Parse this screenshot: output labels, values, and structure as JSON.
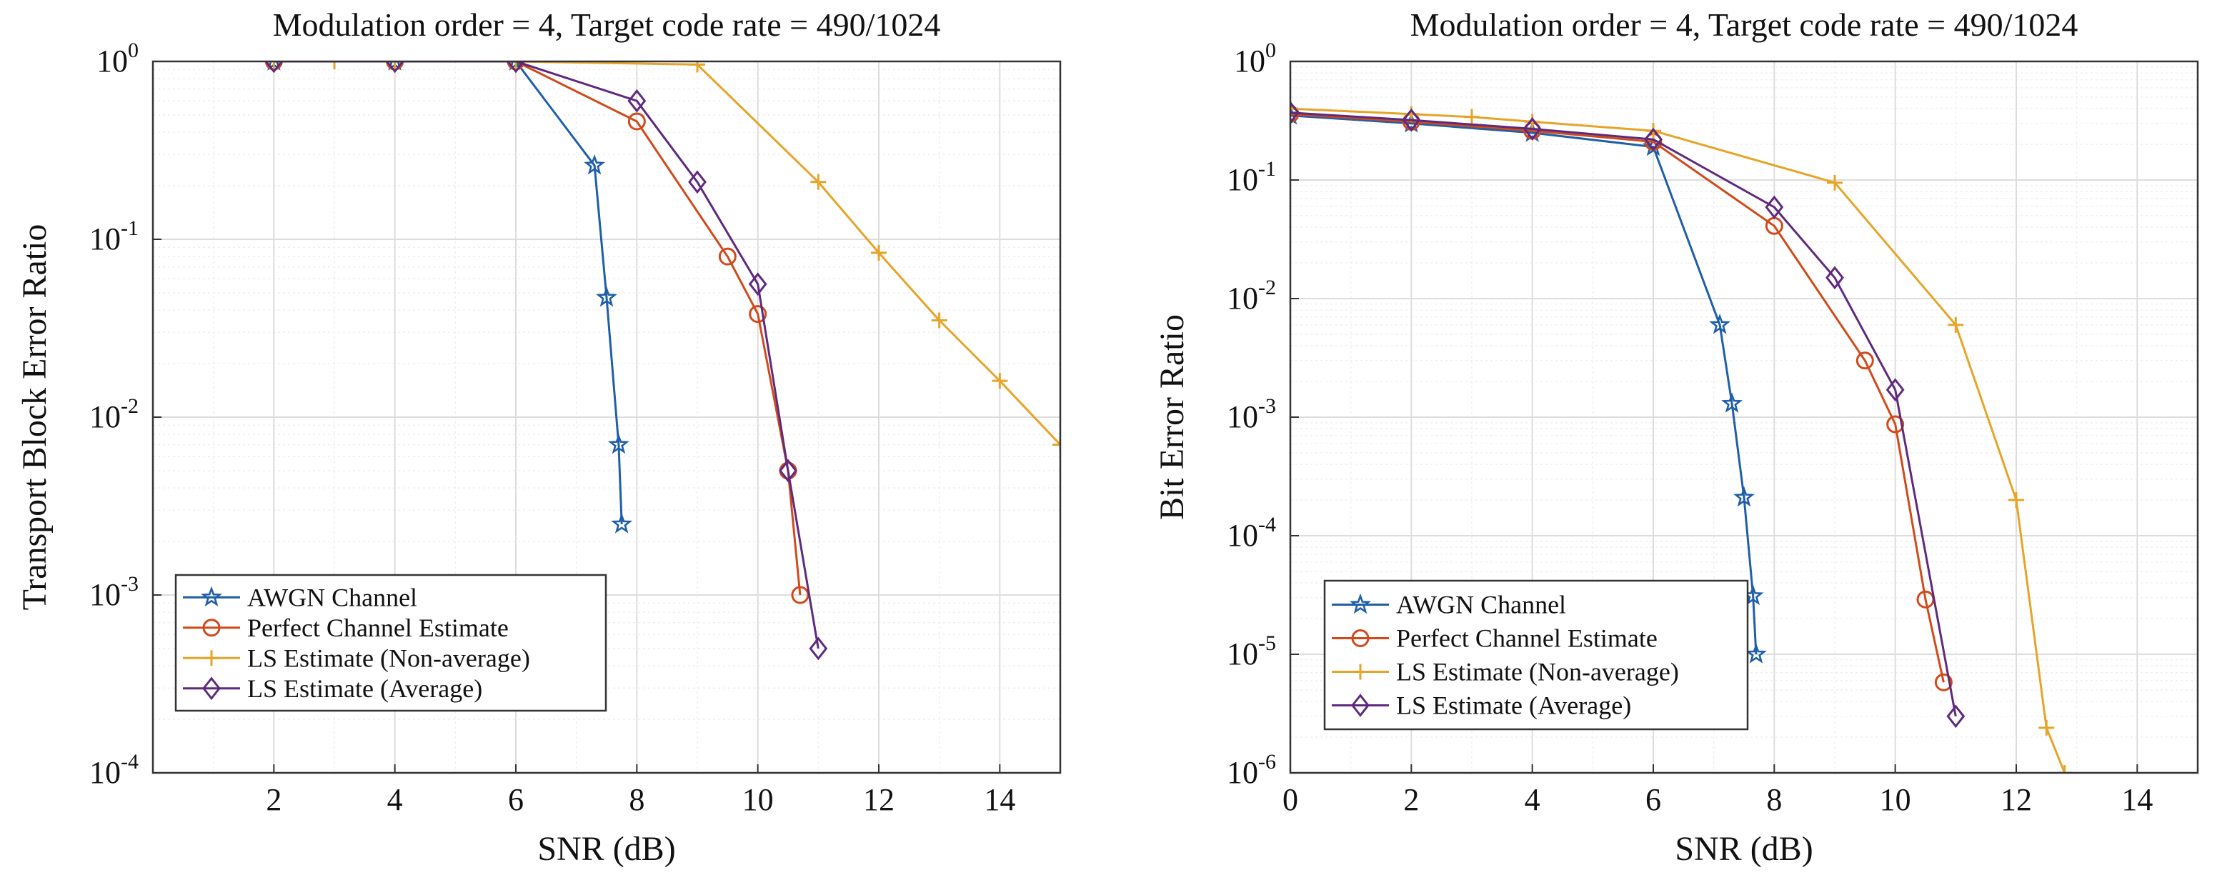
{
  "colors": {
    "awgn": "#1F5FA8",
    "perfect": "#D14A1B",
    "ls_nonavg": "#E6A428",
    "ls_avg": "#5E2A7E",
    "grid_major": "#DDDDDD",
    "grid_minor": "#EFEFEF",
    "axes": "#333333"
  },
  "chart_data": [
    {
      "type": "line",
      "title": "Modulation order = 4, Target code rate = 490/1024",
      "xlabel": "SNR (dB)",
      "ylabel": "Transport Block Error Ratio",
      "yscale": "log",
      "xlim": [
        0,
        15
      ],
      "ylim_exp": [
        -4,
        0
      ],
      "xticks": [
        2,
        4,
        6,
        8,
        10,
        12,
        14
      ],
      "yticks": [
        {
          "mant": "10",
          "exp": "0"
        },
        {
          "mant": "10",
          "exp": "-1"
        },
        {
          "mant": "10",
          "exp": "-2"
        },
        {
          "mant": "10",
          "exp": "-3"
        },
        {
          "mant": "10",
          "exp": "-4"
        }
      ],
      "legend_location": "lower-left",
      "series": [
        {
          "name": "AWGN Channel",
          "color_key": "awgn",
          "marker": "star",
          "x": [
            2,
            4,
            6,
            7.3,
            7.5,
            7.7,
            7.75
          ],
          "y": [
            1,
            1,
            1,
            0.26,
            0.047,
            0.007,
            0.0025
          ]
        },
        {
          "name": "Perfect Channel Estimate",
          "color_key": "perfect",
          "marker": "circle",
          "x": [
            2,
            4,
            6,
            8,
            9.5,
            10,
            10.5,
            10.7
          ],
          "y": [
            1,
            1,
            1,
            0.46,
            0.08,
            0.038,
            0.005,
            0.001
          ]
        },
        {
          "name": "LS Estimate (Non-average)",
          "color_key": "ls_nonavg",
          "marker": "plus",
          "x": [
            2,
            3,
            4,
            6,
            9,
            11,
            12,
            13,
            14,
            15
          ],
          "y": [
            1,
            1,
            1,
            1,
            0.96,
            0.21,
            0.084,
            0.035,
            0.016,
            0.007
          ]
        },
        {
          "name": "LS Estimate (Average)",
          "color_key": "ls_avg",
          "marker": "diamond",
          "x": [
            2,
            4,
            6,
            8,
            9,
            10,
            10.5,
            11
          ],
          "y": [
            1,
            1,
            1,
            0.6,
            0.21,
            0.056,
            0.005,
            0.0005
          ]
        }
      ]
    },
    {
      "type": "line",
      "title": "Modulation order = 4, Target code rate = 490/1024",
      "xlabel": "SNR (dB)",
      "ylabel": "Bit Error Ratio",
      "yscale": "log",
      "xlim": [
        0,
        15
      ],
      "ylim_exp": [
        -6,
        0
      ],
      "xticks": [
        0,
        2,
        4,
        6,
        8,
        10,
        12,
        14
      ],
      "yticks": [
        {
          "mant": "10",
          "exp": "0"
        },
        {
          "mant": "10",
          "exp": "-1"
        },
        {
          "mant": "10",
          "exp": "-2"
        },
        {
          "mant": "10",
          "exp": "-3"
        },
        {
          "mant": "10",
          "exp": "-4"
        },
        {
          "mant": "10",
          "exp": "-5"
        },
        {
          "mant": "10",
          "exp": "-6"
        }
      ],
      "legend_location": "lower-left",
      "series": [
        {
          "name": "AWGN Channel",
          "color_key": "awgn",
          "marker": "star",
          "x": [
            0,
            2,
            4,
            6,
            7.1,
            7.3,
            7.5,
            7.65,
            7.7
          ],
          "y": [
            0.35,
            0.3,
            0.25,
            0.19,
            0.006,
            0.0013,
            0.00021,
            3.1e-05,
            1e-05
          ]
        },
        {
          "name": "Perfect Channel Estimate",
          "color_key": "perfect",
          "marker": "circle",
          "x": [
            0,
            2,
            4,
            6,
            8,
            9.5,
            10,
            10.5,
            10.8
          ],
          "y": [
            0.36,
            0.31,
            0.26,
            0.21,
            0.041,
            0.003,
            0.00087,
            2.9e-05,
            5.8e-06
          ]
        },
        {
          "name": "LS Estimate (Non-average)",
          "color_key": "ls_nonavg",
          "marker": "plus",
          "x": [
            0,
            2,
            3,
            4,
            6,
            9,
            11,
            12,
            12.5,
            12.8
          ],
          "y": [
            0.4,
            0.36,
            0.34,
            0.31,
            0.26,
            0.095,
            0.006,
            0.0002,
            2.4e-06,
            1e-06
          ]
        },
        {
          "name": "LS Estimate (Average)",
          "color_key": "ls_avg",
          "marker": "diamond",
          "x": [
            0,
            2,
            4,
            6,
            8,
            9,
            10,
            11
          ],
          "y": [
            0.37,
            0.32,
            0.27,
            0.22,
            0.059,
            0.015,
            0.0017,
            3e-06
          ]
        }
      ]
    }
  ]
}
